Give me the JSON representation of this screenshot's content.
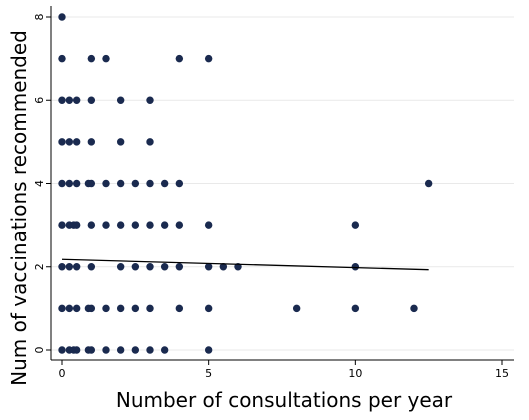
{
  "chart_data": {
    "type": "scatter",
    "title": "",
    "xlabel": "Number of consultations per year",
    "ylabel": "Num of vaccinations recommended",
    "xlim": [
      0,
      15
    ],
    "ylim": [
      0,
      8
    ],
    "xticks": [
      0,
      5,
      10,
      15
    ],
    "yticks": [
      0,
      2,
      4,
      6,
      8
    ],
    "grid": true,
    "legend": "none",
    "colors": {
      "points": "#1a2a4f",
      "fit_line": "#000000",
      "grid": "#e9e9e9"
    },
    "points": [
      {
        "x": 0,
        "y": 8
      },
      {
        "x": 0,
        "y": 7
      },
      {
        "x": 1,
        "y": 7
      },
      {
        "x": 1.5,
        "y": 7
      },
      {
        "x": 4,
        "y": 7
      },
      {
        "x": 5,
        "y": 7
      },
      {
        "x": 0,
        "y": 6
      },
      {
        "x": 0.25,
        "y": 6
      },
      {
        "x": 0.5,
        "y": 6
      },
      {
        "x": 1,
        "y": 6
      },
      {
        "x": 2,
        "y": 6
      },
      {
        "x": 3,
        "y": 6
      },
      {
        "x": 0,
        "y": 5
      },
      {
        "x": 0.25,
        "y": 5
      },
      {
        "x": 0.5,
        "y": 5
      },
      {
        "x": 1,
        "y": 5
      },
      {
        "x": 2,
        "y": 5
      },
      {
        "x": 3,
        "y": 5
      },
      {
        "x": 0,
        "y": 4
      },
      {
        "x": 0.25,
        "y": 4
      },
      {
        "x": 0.5,
        "y": 4
      },
      {
        "x": 0.9,
        "y": 4
      },
      {
        "x": 1,
        "y": 4
      },
      {
        "x": 1.5,
        "y": 4
      },
      {
        "x": 2,
        "y": 4
      },
      {
        "x": 2.5,
        "y": 4
      },
      {
        "x": 3,
        "y": 4
      },
      {
        "x": 3.5,
        "y": 4
      },
      {
        "x": 4,
        "y": 4
      },
      {
        "x": 12.5,
        "y": 4
      },
      {
        "x": 0,
        "y": 3
      },
      {
        "x": 0.25,
        "y": 3
      },
      {
        "x": 0.4,
        "y": 3
      },
      {
        "x": 0.5,
        "y": 3
      },
      {
        "x": 1,
        "y": 3
      },
      {
        "x": 1.5,
        "y": 3
      },
      {
        "x": 2,
        "y": 3
      },
      {
        "x": 2.5,
        "y": 3
      },
      {
        "x": 3,
        "y": 3
      },
      {
        "x": 3.5,
        "y": 3
      },
      {
        "x": 4,
        "y": 3
      },
      {
        "x": 5,
        "y": 3
      },
      {
        "x": 10,
        "y": 3
      },
      {
        "x": 0,
        "y": 2
      },
      {
        "x": 0.25,
        "y": 2
      },
      {
        "x": 0.5,
        "y": 2
      },
      {
        "x": 1,
        "y": 2
      },
      {
        "x": 2,
        "y": 2
      },
      {
        "x": 2.5,
        "y": 2
      },
      {
        "x": 3,
        "y": 2
      },
      {
        "x": 3.5,
        "y": 2
      },
      {
        "x": 4,
        "y": 2
      },
      {
        "x": 5,
        "y": 2
      },
      {
        "x": 5.5,
        "y": 2
      },
      {
        "x": 6,
        "y": 2
      },
      {
        "x": 10,
        "y": 2
      },
      {
        "x": 0,
        "y": 1
      },
      {
        "x": 0.25,
        "y": 1
      },
      {
        "x": 0.5,
        "y": 1
      },
      {
        "x": 0.9,
        "y": 1
      },
      {
        "x": 1,
        "y": 1
      },
      {
        "x": 1.5,
        "y": 1
      },
      {
        "x": 2,
        "y": 1
      },
      {
        "x": 2.5,
        "y": 1
      },
      {
        "x": 3,
        "y": 1
      },
      {
        "x": 4,
        "y": 1
      },
      {
        "x": 5,
        "y": 1
      },
      {
        "x": 8,
        "y": 1
      },
      {
        "x": 10,
        "y": 1
      },
      {
        "x": 12,
        "y": 1
      },
      {
        "x": 0,
        "y": 0
      },
      {
        "x": 0.25,
        "y": 0
      },
      {
        "x": 0.4,
        "y": 0
      },
      {
        "x": 0.5,
        "y": 0
      },
      {
        "x": 0.9,
        "y": 0
      },
      {
        "x": 1,
        "y": 0
      },
      {
        "x": 1.5,
        "y": 0
      },
      {
        "x": 2,
        "y": 0
      },
      {
        "x": 2.5,
        "y": 0
      },
      {
        "x": 3,
        "y": 0
      },
      {
        "x": 3.5,
        "y": 0
      },
      {
        "x": 5,
        "y": 0
      }
    ],
    "fit_line": {
      "x": [
        0,
        12.5
      ],
      "y": [
        2.18,
        1.93
      ]
    }
  }
}
